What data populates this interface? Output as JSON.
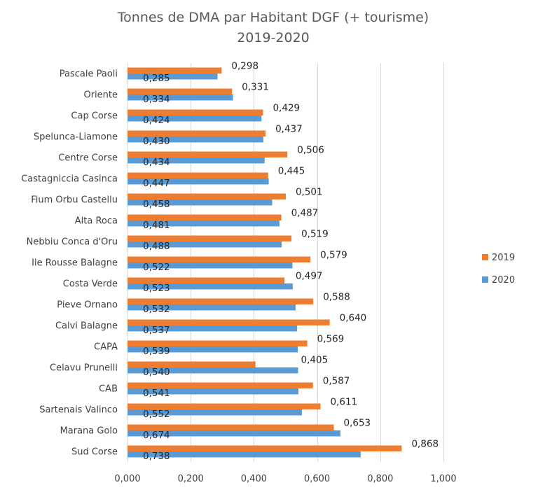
{
  "chart_data": {
    "type": "bar",
    "orientation": "horizontal",
    "title": "Tonnes de DMA par Habitant DGF (+ tourisme)",
    "subtitle": "2019-2020",
    "xlabel": "",
    "ylabel": "",
    "xlim": [
      0,
      1.0
    ],
    "x_ticks": [
      "0,000",
      "0,200",
      "0,400",
      "0,600",
      "0,800",
      "1,000"
    ],
    "x_tick_values": [
      0,
      0.2,
      0.4,
      0.6,
      0.8,
      1.0
    ],
    "grid": true,
    "legend_position": "right",
    "categories": [
      "Pascale Paoli",
      "Oriente",
      "Cap Corse",
      "Spelunca-Liamone",
      "Centre Corse",
      "Castagniccia Casinca",
      "Fium Orbu Castellu",
      "Alta Roca",
      "Nebbiu Conca d'Oru",
      "Ile Rousse Balagne",
      "Costa Verde",
      "Pieve Ornano",
      "Calvi Balagne",
      "CAPA",
      "Celavu Prunelli",
      "CAB",
      "Sartenais Valinco",
      "Marana Golo",
      "Sud Corse"
    ],
    "series": [
      {
        "name": "2019",
        "color": "#ED7D31",
        "values": [
          0.298,
          0.331,
          0.429,
          0.437,
          0.506,
          0.445,
          0.501,
          0.487,
          0.519,
          0.579,
          0.497,
          0.588,
          0.64,
          0.569,
          0.405,
          0.587,
          0.611,
          0.653,
          0.868
        ],
        "labels": [
          "0,298",
          "0,331",
          "0,429",
          "0,437",
          "0,506",
          "0,445",
          "0,501",
          "0,487",
          "0,519",
          "0,579",
          "0,497",
          "0,588",
          "0,640",
          "0,569",
          "0,405",
          "0,587",
          "0,611",
          "0,653",
          "0,868"
        ]
      },
      {
        "name": "2020",
        "color": "#5B9BD5",
        "values": [
          0.285,
          0.334,
          0.424,
          0.43,
          0.434,
          0.447,
          0.458,
          0.481,
          0.488,
          0.522,
          0.523,
          0.532,
          0.537,
          0.539,
          0.54,
          0.541,
          0.552,
          0.674,
          0.738
        ],
        "labels": [
          "0,285",
          "0,334",
          "0,424",
          "0,430",
          "0,434",
          "0,447",
          "0,458",
          "0,481",
          "0,488",
          "0,522",
          "0,523",
          "0,532",
          "0,537",
          "0,539",
          "0,540",
          "0,541",
          "0,552",
          "0,674",
          "0,738"
        ]
      }
    ]
  }
}
